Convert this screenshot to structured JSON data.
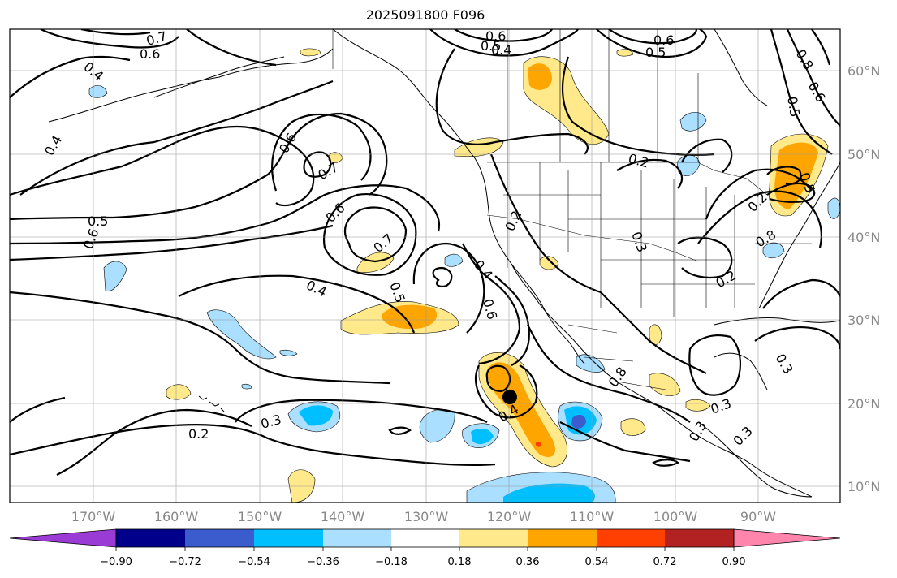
{
  "map": {
    "title": "2025091800 F096",
    "projection": "equirectangular",
    "lon_range": [
      -180,
      -80
    ],
    "lat_range": [
      8,
      65
    ],
    "lon_ticks": [
      "170°W",
      "160°W",
      "150°W",
      "140°W",
      "130°W",
      "120°W",
      "110°W",
      "100°W",
      "90°W"
    ],
    "lat_ticks": [
      "10°N",
      "20°N",
      "30°N",
      "40°N",
      "50°N",
      "60°N"
    ],
    "gridlines": true,
    "marker": {
      "lon": -119.7,
      "lat": 20.5,
      "label": ""
    },
    "contour_labels": [
      "0.7",
      "0.6",
      "0.4",
      "0.4",
      "0.6",
      "0.7",
      "0.5",
      "0.6",
      "0.6",
      "0.7",
      "0.4",
      "0.5",
      "0.4",
      "0.6",
      "0.2",
      "0.3",
      "0.2",
      "0.3",
      "0.6",
      "0.5",
      "0.4",
      "0.6",
      "0.5",
      "0.8",
      "0.6",
      "0.5",
      "0.2",
      "0.8",
      "0.2",
      "0.3",
      "0.3",
      "0.8",
      "0.3",
      "0.3",
      "0.2",
      "0.4",
      "0.5"
    ]
  },
  "colorbar": {
    "ticks": [
      "−0.90",
      "−0.72",
      "−0.54",
      "−0.36",
      "−0.18",
      "0.18",
      "0.36",
      "0.54",
      "0.72",
      "0.90"
    ],
    "colors": [
      "#9b3bd6",
      "#00008b",
      "#3a5ccc",
      "#00bfff",
      "#aadfff",
      "#ffffff",
      "#ffe98a",
      "#ffa500",
      "#ff4000",
      "#b22222",
      "#ff85ad"
    ]
  }
}
